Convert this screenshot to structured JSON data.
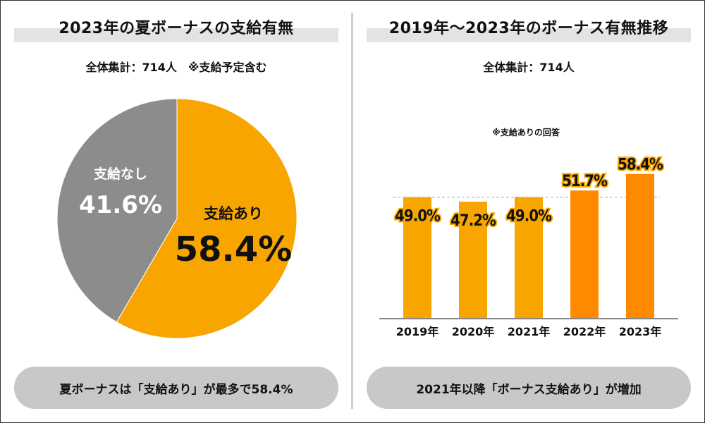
{
  "colors": {
    "orange": "#f8a500",
    "dark_orange": "#ff8a00",
    "gray_slice": "#8c8c8c",
    "title_band": "#e3e3e3",
    "pill_bg": "#c8c8c8"
  },
  "left": {
    "title": "2023年の夏ボーナスの支給有無",
    "subtitle": "全体集計：714人　※支給予定含む",
    "pill": "夏ボーナスは「支給あり」が最多で58.4%"
  },
  "right": {
    "title": "2019年～2023年のボーナス有無推移",
    "subtitle": "全体集計：714人",
    "pill": "2021年以降「ボーナス支給あり」が増加"
  },
  "chart_data": [
    {
      "type": "pie",
      "title": "2023年の夏ボーナスの支給有無",
      "slices": [
        {
          "label": "支給あり",
          "value": 58.4,
          "display": "58.4%",
          "color": "#f8a500"
        },
        {
          "label": "支給なし",
          "value": 41.6,
          "display": "41.6%",
          "color": "#8c8c8c"
        }
      ],
      "start": "12 o'clock, clockwise"
    },
    {
      "type": "bar",
      "title": "2019年～2023年のボーナス有無推移",
      "note": "※支給ありの回答",
      "categories": [
        "2019年",
        "2020年",
        "2021年",
        "2022年",
        "2023年"
      ],
      "values": [
        49.0,
        47.2,
        49.0,
        51.7,
        58.4
      ],
      "labels": [
        "49.0%",
        "47.2%",
        "49.0%",
        "51.7%",
        "58.4%"
      ],
      "bar_colors": [
        "#f8a500",
        "#f8a500",
        "#f8a500",
        "#ff8a00",
        "#ff8a00"
      ],
      "reference_line": 49.0,
      "ylim": [
        0,
        62
      ],
      "xlabel": "",
      "ylabel": ""
    }
  ]
}
